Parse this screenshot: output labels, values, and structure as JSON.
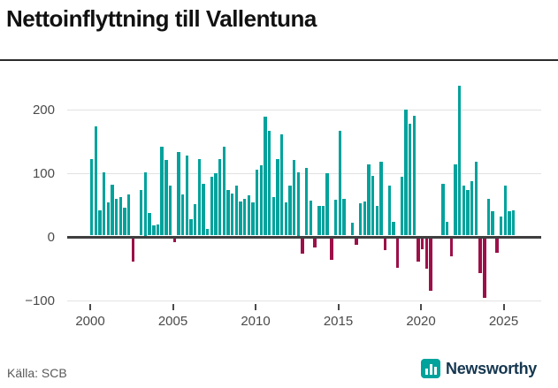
{
  "title": "Nettoinflyttning till Vallentuna",
  "source": "Källa: SCB",
  "logo": {
    "text": "Newsworthy"
  },
  "colors": {
    "positive": "#00a29c",
    "negative": "#9c1049",
    "axis": "#3f3f3f",
    "grid": "#e2e2e2",
    "tick_label": "#4a4a4a",
    "title": "#111111",
    "logo_bg": "#00a29c",
    "logo_text": "#15374f",
    "source_text": "#595959"
  },
  "chart_data": {
    "type": "bar",
    "title": "Nettoinflyttning till Vallentuna",
    "frequency": "quarterly",
    "start": "2000-Q1",
    "end": "2025-Q3",
    "x_ticks": [
      {
        "label": "2000",
        "quarter_index": 0
      },
      {
        "label": "2005",
        "quarter_index": 20
      },
      {
        "label": "2010",
        "quarter_index": 40
      },
      {
        "label": "2015",
        "quarter_index": 60
      },
      {
        "label": "2020",
        "quarter_index": 80
      },
      {
        "label": "2025",
        "quarter_index": 100
      }
    ],
    "y_ticks": [
      {
        "label": "200",
        "value": 200
      },
      {
        "label": "100",
        "value": 100
      },
      {
        "label": "0",
        "value": 0
      },
      {
        "label": "−100",
        "value": -100
      }
    ],
    "ylim": [
      -110,
      245
    ],
    "grid": true,
    "legend": false,
    "values": [
      120,
      171,
      40,
      99,
      52,
      80,
      58,
      60,
      44,
      65,
      -37,
      0,
      72,
      100,
      35,
      16,
      18,
      140,
      119,
      79,
      -6,
      131,
      64,
      126,
      26,
      49,
      120,
      81,
      11,
      93,
      98,
      120,
      140,
      71,
      66,
      78,
      53,
      57,
      63,
      52,
      104,
      110,
      187,
      164,
      61,
      120,
      159,
      52,
      79,
      119,
      100,
      -24,
      106,
      55,
      -14,
      46,
      46,
      98,
      -34,
      56,
      165,
      58,
      0,
      20,
      -11,
      51,
      53,
      112,
      94,
      46,
      116,
      -19,
      78,
      21,
      -46,
      92,
      198,
      176,
      188,
      -37,
      -17,
      -48,
      -83,
      0,
      0,
      81,
      21,
      -28,
      112,
      236,
      78,
      71,
      85,
      116,
      -55,
      -94,
      57,
      38,
      -23,
      30,
      78,
      38,
      40
    ]
  }
}
